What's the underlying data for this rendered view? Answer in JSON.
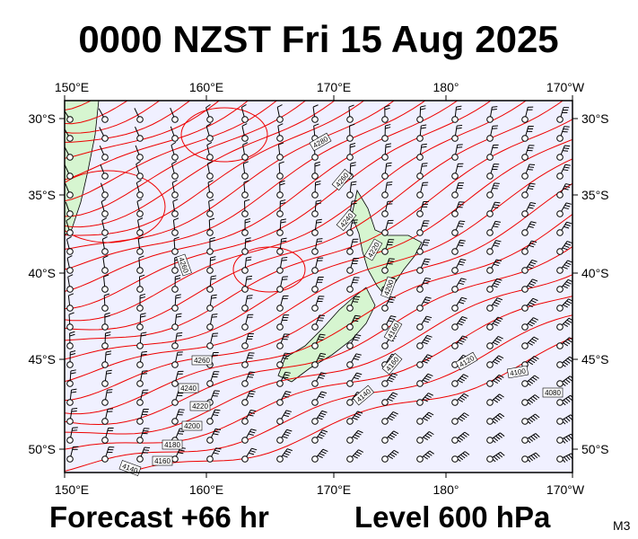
{
  "title": "0000 NZST Fri 15 Aug 2025",
  "lon_labels": [
    "150°E",
    "160°E",
    "170°E",
    "180°",
    "170°W"
  ],
  "lat_labels": [
    "30°S",
    "35°S",
    "40°S",
    "45°S",
    "50°S"
  ],
  "contour_labels": [
    "4280",
    "4260",
    "4240",
    "4220",
    "4200",
    "4260",
    "4260",
    "4240",
    "4220",
    "4200",
    "4180",
    "4160",
    "4140",
    "4160",
    "4160",
    "4140",
    "4120",
    "4100",
    "4080"
  ],
  "footer": {
    "forecast": "Forecast +66 hr",
    "level": "Level 600 hPa",
    "code": "M3"
  }
}
